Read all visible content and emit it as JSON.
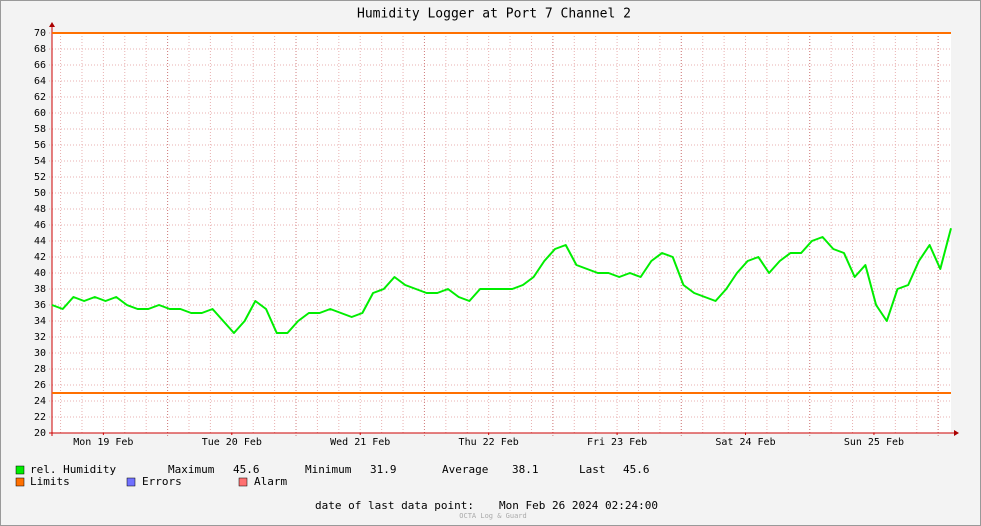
{
  "chart_data": {
    "type": "line",
    "title": "Humidity Logger at Port 7 Channel 2",
    "xlim": [
      2.4,
      170.4
    ],
    "xticks": [
      {
        "value": 12,
        "label": "Mon 19 Feb"
      },
      {
        "value": 36,
        "label": "Tue 20 Feb"
      },
      {
        "value": 60,
        "label": "Wed 21 Feb"
      },
      {
        "value": 84,
        "label": "Thu 22 Feb"
      },
      {
        "value": 108,
        "label": "Fri 23 Feb"
      },
      {
        "value": 132,
        "label": "Sat 24 Feb"
      },
      {
        "value": 156,
        "label": "Sun 25 Feb"
      }
    ],
    "xgrid": [
      4,
      8,
      12,
      16,
      20,
      24,
      28,
      32,
      36,
      40,
      44,
      48,
      52,
      56,
      60,
      64,
      68,
      72,
      76,
      80,
      84,
      88,
      92,
      96,
      100,
      104,
      108,
      112,
      116,
      120,
      124,
      128,
      132,
      136,
      140,
      144,
      148,
      152,
      156,
      160,
      164,
      168
    ],
    "xmajor": [
      24,
      48,
      72,
      96,
      120,
      144,
      168
    ],
    "ylim": [
      20,
      70
    ],
    "yticks": [
      20,
      22,
      24,
      26,
      28,
      30,
      32,
      34,
      36,
      38,
      40,
      42,
      44,
      46,
      48,
      50,
      52,
      54,
      56,
      58,
      60,
      62,
      64,
      66,
      68,
      70
    ],
    "grid": true,
    "x": [
      2.4,
      4.4,
      6.4,
      8.4,
      10.4,
      12.4,
      14.4,
      16.4,
      18.4,
      20.4,
      22.4,
      24.4,
      26.4,
      28.4,
      30.4,
      32.4,
      34.4,
      36.4,
      38.4,
      40.4,
      42.4,
      44.4,
      46.4,
      48.4,
      50.4,
      52.4,
      54.4,
      56.4,
      58.4,
      60.4,
      62.4,
      64.4,
      66.4,
      68.4,
      70.4,
      72.4,
      74.4,
      76.4,
      78.4,
      80.4,
      82.4,
      84.4,
      86.4,
      88.4,
      90.4,
      92.4,
      94.4,
      96.4,
      98.4,
      100.4,
      102.4,
      104.4,
      106.4,
      108.4,
      110.4,
      112.4,
      114.4,
      116.4,
      118.4,
      120.4,
      122.4,
      124.4,
      126.4,
      128.4,
      130.4,
      132.4,
      134.4,
      136.4,
      138.4,
      140.4,
      142.4,
      144.4,
      146.4,
      148.4,
      150.4,
      152.4,
      154.4,
      156.4,
      158.4,
      160.4,
      162.4,
      164.4,
      166.4,
      168.4,
      170.4
    ],
    "series": [
      {
        "name": "rel. Humidity",
        "color": "#00ee00",
        "values": [
          36,
          35.5,
          37,
          36.5,
          37,
          36.5,
          37,
          36,
          35.5,
          35.5,
          36,
          35.5,
          35.5,
          35,
          35,
          35.5,
          34,
          32.5,
          34,
          36.5,
          35.5,
          32.5,
          32.5,
          34,
          35,
          35,
          35.5,
          35,
          34.5,
          35,
          37.5,
          38,
          39.5,
          38.5,
          38,
          37.5,
          37.5,
          38,
          37,
          36.5,
          38,
          38,
          38,
          38,
          38.5,
          39.5,
          41.5,
          43,
          43.5,
          41,
          40.5,
          40,
          40,
          39.5,
          40,
          39.5,
          41.5,
          42.5,
          42,
          38.5,
          37.5,
          37,
          36.5,
          38,
          40,
          41.5,
          42,
          40,
          41.5,
          42.5,
          42.5,
          44,
          44.5,
          43,
          42.5,
          39.5,
          41,
          36,
          34,
          38,
          38.5,
          41.5,
          43.5,
          40.5,
          45.6
        ]
      }
    ],
    "limits": {
      "name": "Limits",
      "color": "#ff7000",
      "values": [
        70,
        25
      ]
    },
    "extra_legend": [
      {
        "name": "Errors",
        "color": "#7070ff"
      },
      {
        "name": "Alarm",
        "color": "#ff7070"
      }
    ],
    "stats": [
      {
        "label": "Maximum",
        "value": 45.6
      },
      {
        "label": "Minimum",
        "value": 31.9
      },
      {
        "label": "Average",
        "value": 38.1
      },
      {
        "label": "Last",
        "value": 45.6
      }
    ],
    "last_point_label": "date of last data point:",
    "last_point": "Mon Feb 26 2024 02:24:00",
    "watermark": "OCTA Log & Guard"
  }
}
